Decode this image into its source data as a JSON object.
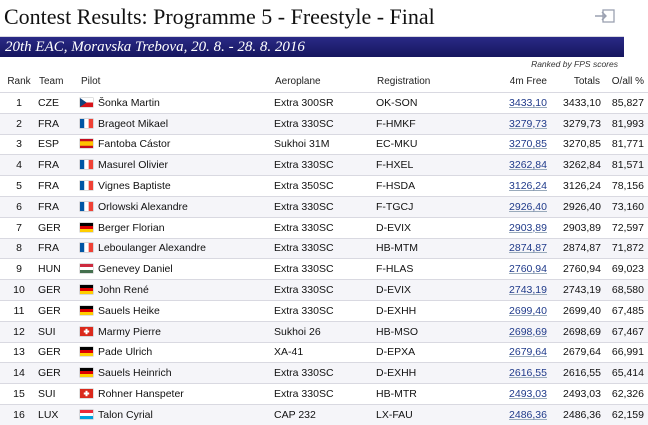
{
  "title": "Contest Results: Programme 5 - Freestyle - Final",
  "subtitle": "20th EAC, Moravska Trebova, 20. 8. - 28. 8. 2016",
  "note": "Ranked by FPS scores",
  "headers": {
    "rank": "Rank",
    "team": "Team",
    "pilot": "Pilot",
    "aeroplane": "Aeroplane",
    "registration": "Registration",
    "free": "4m Free",
    "totals": "Totals",
    "pct": "O/all %"
  },
  "rows": [
    {
      "rank": "1",
      "team": "CZE",
      "flag": "cze",
      "pilot": "Šonka Martin",
      "aeroplane": "Extra 300SR",
      "registration": "OK-SON",
      "free": "3433,10",
      "totals": "3433,10",
      "pct": "85,827"
    },
    {
      "rank": "2",
      "team": "FRA",
      "flag": "fra",
      "pilot": "Brageot Mikael",
      "aeroplane": "Extra 330SC",
      "registration": "F-HMKF",
      "free": "3279,73",
      "totals": "3279,73",
      "pct": "81,993"
    },
    {
      "rank": "3",
      "team": "ESP",
      "flag": "esp",
      "pilot": "Fantoba Cástor",
      "aeroplane": "Sukhoi 31M",
      "registration": "EC-MKU",
      "free": "3270,85",
      "totals": "3270,85",
      "pct": "81,771"
    },
    {
      "rank": "4",
      "team": "FRA",
      "flag": "fra",
      "pilot": "Masurel Olivier",
      "aeroplane": "Extra 330SC",
      "registration": "F-HXEL",
      "free": "3262,84",
      "totals": "3262,84",
      "pct": "81,571"
    },
    {
      "rank": "5",
      "team": "FRA",
      "flag": "fra",
      "pilot": "Vignes Baptiste",
      "aeroplane": "Extra 350SC",
      "registration": "F-HSDA",
      "free": "3126,24",
      "totals": "3126,24",
      "pct": "78,156"
    },
    {
      "rank": "6",
      "team": "FRA",
      "flag": "fra",
      "pilot": "Orlowski Alexandre",
      "aeroplane": "Extra 330SC",
      "registration": "F-TGCJ",
      "free": "2926,40",
      "totals": "2926,40",
      "pct": "73,160"
    },
    {
      "rank": "7",
      "team": "GER",
      "flag": "ger",
      "pilot": "Berger Florian",
      "aeroplane": "Extra 330SC",
      "registration": "D-EVIX",
      "free": "2903,89",
      "totals": "2903,89",
      "pct": "72,597"
    },
    {
      "rank": "8",
      "team": "FRA",
      "flag": "fra",
      "pilot": "Leboulanger Alexandre",
      "aeroplane": "Extra 330SC",
      "registration": "HB-MTM",
      "free": "2874,87",
      "totals": "2874,87",
      "pct": "71,872"
    },
    {
      "rank": "9",
      "team": "HUN",
      "flag": "hun",
      "pilot": "Genevey Daniel",
      "aeroplane": "Extra 330SC",
      "registration": "F-HLAS",
      "free": "2760,94",
      "totals": "2760,94",
      "pct": "69,023"
    },
    {
      "rank": "10",
      "team": "GER",
      "flag": "ger",
      "pilot": "John René",
      "aeroplane": "Extra 330SC",
      "registration": "D-EVIX",
      "free": "2743,19",
      "totals": "2743,19",
      "pct": "68,580"
    },
    {
      "rank": "11",
      "team": "GER",
      "flag": "ger",
      "pilot": "Sauels Heike",
      "aeroplane": "Extra 330SC",
      "registration": "D-EXHH",
      "free": "2699,40",
      "totals": "2699,40",
      "pct": "67,485"
    },
    {
      "rank": "12",
      "team": "SUI",
      "flag": "sui",
      "pilot": "Marmy Pierre",
      "aeroplane": "Sukhoi 26",
      "registration": "HB-MSO",
      "free": "2698,69",
      "totals": "2698,69",
      "pct": "67,467"
    },
    {
      "rank": "13",
      "team": "GER",
      "flag": "ger",
      "pilot": "Pade Ulrich",
      "aeroplane": "XA-41",
      "registration": "D-EPXA",
      "free": "2679,64",
      "totals": "2679,64",
      "pct": "66,991"
    },
    {
      "rank": "14",
      "team": "GER",
      "flag": "ger",
      "pilot": "Sauels Heinrich",
      "aeroplane": "Extra 330SC",
      "registration": "D-EXHH",
      "free": "2616,55",
      "totals": "2616,55",
      "pct": "65,414"
    },
    {
      "rank": "15",
      "team": "SUI",
      "flag": "sui",
      "pilot": "Rohner Hanspeter",
      "aeroplane": "Extra 330SC",
      "registration": "HB-MTR",
      "free": "2493,03",
      "totals": "2493,03",
      "pct": "62,326"
    },
    {
      "rank": "16",
      "team": "LUX",
      "flag": "lux",
      "pilot": "Talon Cyrial",
      "aeroplane": "CAP 232",
      "registration": "LX-FAU",
      "free": "2486,36",
      "totals": "2486,36",
      "pct": "62,159"
    }
  ]
}
